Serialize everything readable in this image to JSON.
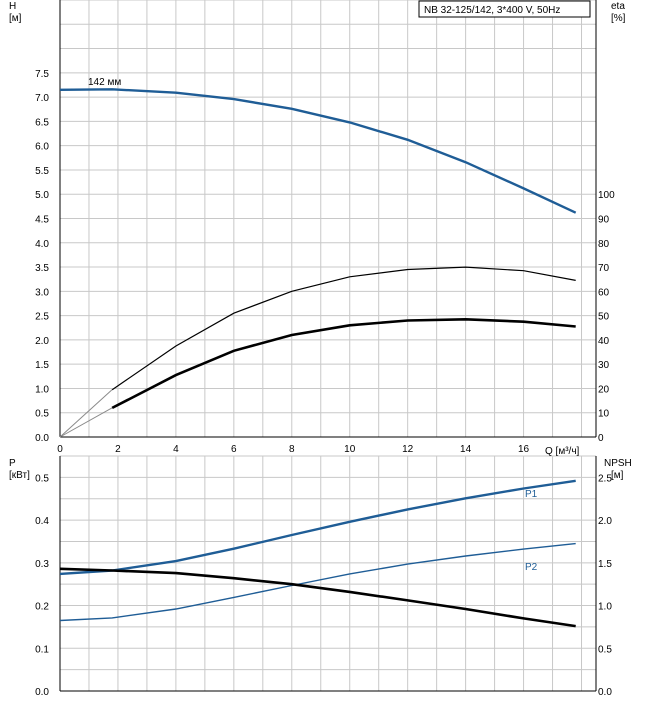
{
  "header": {
    "pump_label": "NB 32-125/142, 3*400 V, 50Hz"
  },
  "chart_data": [
    {
      "type": "line",
      "title": "",
      "xlabel": "Q [м³/ч]",
      "x_ticks": [
        "0",
        "2",
        "4",
        "6",
        "8",
        "10",
        "12",
        "14",
        "16"
      ],
      "xlim": [
        0,
        18.5
      ],
      "left_axis": {
        "label_line1": "H",
        "label_line2": "[м]",
        "ylim": [
          0,
          9
        ],
        "ticks": [
          "0.0",
          "0.5",
          "1.0",
          "1.5",
          "2.0",
          "2.5",
          "3.0",
          "3.5",
          "4.0",
          "4.5",
          "5.0",
          "5.5",
          "6.0",
          "6.5",
          "7.0",
          "7.5"
        ]
      },
      "right_axis": {
        "label_line1": "eta",
        "label_line2": "[%]",
        "ylim": [
          0,
          180
        ],
        "ticks": [
          "0",
          "10",
          "20",
          "30",
          "40",
          "50",
          "60",
          "70",
          "80",
          "90",
          "100"
        ]
      },
      "grid": true,
      "series": [
        {
          "name": "142 мм",
          "axis": "left",
          "color": "#1f5d96",
          "x": [
            0,
            1.8,
            4,
            6,
            8,
            10,
            12,
            14,
            16,
            17.8
          ],
          "y": [
            7.15,
            7.16,
            7.09,
            6.96,
            6.76,
            6.48,
            6.12,
            5.66,
            5.12,
            4.62
          ]
        },
        {
          "name": "",
          "axis": "right",
          "color": "#000000",
          "x": [
            1.8,
            4,
            6,
            8,
            10,
            12,
            14,
            16,
            17.8
          ],
          "y": [
            19.5,
            37.5,
            51,
            60,
            66,
            69,
            70,
            68.5,
            64.5
          ]
        },
        {
          "name": "",
          "axis": "right",
          "color": "#000000",
          "x": [
            1.8,
            4,
            6,
            8,
            10,
            12,
            14,
            16,
            17.8
          ],
          "y": [
            12,
            25.5,
            35.5,
            42,
            46,
            48,
            48.5,
            47.5,
            45.5
          ]
        }
      ]
    },
    {
      "type": "line",
      "title": "",
      "left_axis": {
        "label_line1": "P",
        "label_line2": "[кВт]",
        "ylim": [
          0,
          0.55
        ],
        "ticks": [
          "0.0",
          "0.1",
          "0.2",
          "0.3",
          "0.4",
          "0.5"
        ]
      },
      "right_axis": {
        "label_line1": "NPSH",
        "label_line2": "[м]",
        "ylim": [
          0,
          2.75
        ],
        "ticks": [
          "0.0",
          "0.5",
          "1.0",
          "1.5",
          "2.0",
          "2.5"
        ]
      },
      "grid": true,
      "series": [
        {
          "name": "P1",
          "axis": "left",
          "color": "#1f5d96",
          "x": [
            0,
            1.8,
            4,
            6,
            8,
            10,
            12,
            14,
            16,
            17.8
          ],
          "y": [
            0.274,
            0.282,
            0.304,
            0.333,
            0.365,
            0.396,
            0.425,
            0.451,
            0.474,
            0.492
          ]
        },
        {
          "name": "P2",
          "axis": "left",
          "color": "#1f5d96",
          "x": [
            0,
            1.8,
            4,
            6,
            8,
            10,
            12,
            14,
            16,
            17.8
          ],
          "y": [
            0.165,
            0.171,
            0.192,
            0.219,
            0.247,
            0.274,
            0.297,
            0.316,
            0.332,
            0.345
          ]
        },
        {
          "name": "",
          "axis": "right",
          "color": "#000000",
          "x": [
            0,
            1.8,
            4,
            6,
            8,
            10,
            12,
            14,
            16,
            17.8
          ],
          "y": [
            1.43,
            1.41,
            1.38,
            1.32,
            1.25,
            1.16,
            1.06,
            0.96,
            0.85,
            0.76
          ]
        }
      ]
    }
  ]
}
